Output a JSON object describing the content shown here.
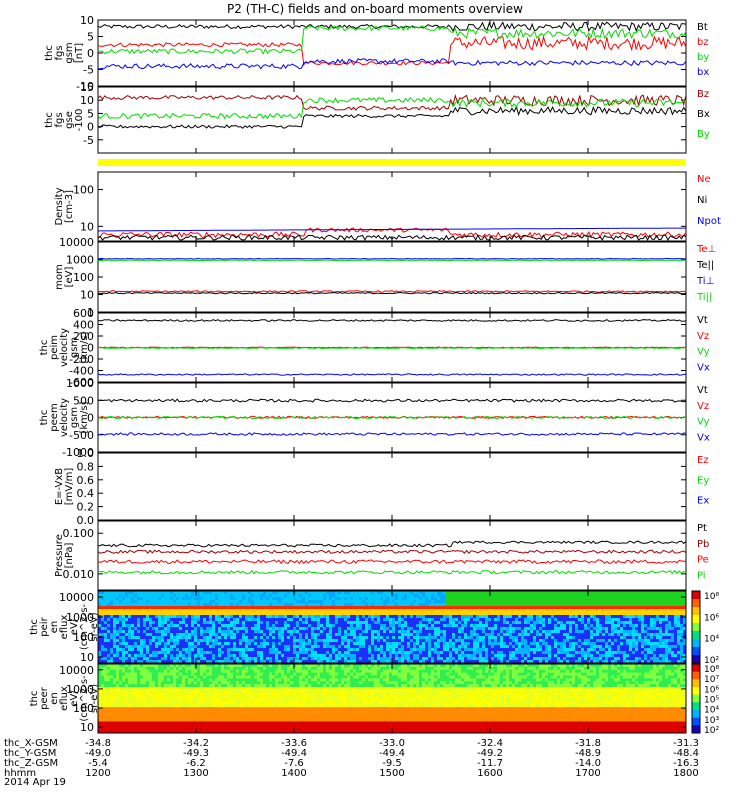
{
  "title": "P2 (TH-C) fields and on-board moments overview",
  "date_label": "2014 Apr 19",
  "chart_data": {
    "type": "line",
    "title": "P2 (TH-C) fields and on-board moments overview",
    "x_axis": {
      "ticks": [
        "1200",
        "1300",
        "1400",
        "1500",
        "1600",
        "1700",
        "1800"
      ],
      "rows": [
        {
          "label": "thc_X-GSM",
          "values": [
            "-34.8",
            "-34.2",
            "-33.6",
            "-33.0",
            "-32.4",
            "-31.8",
            "-31.3"
          ]
        },
        {
          "label": "thc_Y-GSM",
          "values": [
            "-49.0",
            "-49.3",
            "-49.4",
            "-49.4",
            "-49.2",
            "-48.9",
            "-48.4"
          ]
        },
        {
          "label": "thc_Z-GSM",
          "values": [
            "-5.4",
            "-6.2",
            "-7.6",
            "-9.5",
            "-11.7",
            "-14.0",
            "-16.3"
          ]
        },
        {
          "label": "hhmm",
          "values": [
            "1200",
            "1300",
            "1400",
            "1500",
            "1600",
            "1700",
            "1800"
          ]
        }
      ]
    },
    "panels": [
      {
        "id": "fgs_gsm",
        "ylabel": [
          "thc",
          "fgs",
          "gsm",
          "[nT]"
        ],
        "ylim": [
          -10,
          10
        ],
        "log": false,
        "ticks": [
          "10",
          "5",
          "0",
          "-5",
          "-10"
        ],
        "series": [
          {
            "name": "Bt",
            "color": "#000000",
            "profile": "mag_bt"
          },
          {
            "name": "bz",
            "color": "#ff0000",
            "profile": "mag_bz"
          },
          {
            "name": "by",
            "color": "#00dd00",
            "profile": "mag_by"
          },
          {
            "name": "bx",
            "color": "#0000ff",
            "profile": "mag_bx"
          }
        ]
      },
      {
        "id": "fgs_gse",
        "ylabel": [
          "thc",
          "fgs",
          "gse",
          "-100"
        ],
        "ylim": [
          -10,
          15
        ],
        "log": false,
        "ticks": [
          "15",
          "10",
          "5",
          "0",
          "-5"
        ],
        "series": [
          {
            "name": "Bz",
            "color": "#a00000",
            "profile": "gse_bz"
          },
          {
            "name": "Bx",
            "color": "#000000",
            "profile": "gse_bx"
          },
          {
            "name": "By",
            "color": "#00dd00",
            "profile": "gse_by"
          }
        ]
      },
      {
        "id": "density",
        "ylabel": [
          "Density",
          "[cm-3]"
        ],
        "ylim": [
          4,
          300
        ],
        "log": true,
        "ticks": [
          "100",
          "10"
        ],
        "series": [
          {
            "name": "Ne",
            "color": "#ff0000",
            "profile": "ne"
          },
          {
            "name": "Ni",
            "color": "#000000",
            "profile": "ni"
          },
          {
            "name": "Npot",
            "color": "#0000ff",
            "profile": "npot"
          }
        ]
      },
      {
        "id": "temperature",
        "ylabel": [
          "mom",
          "[eV]"
        ],
        "ylim": [
          1,
          10000
        ],
        "log": true,
        "ticks": [
          "10000",
          "1000",
          "100",
          "10",
          "1"
        ],
        "series": [
          {
            "name": "Te⊥",
            "color": "#ff0000",
            "profile": "te_perp"
          },
          {
            "name": "Te||",
            "color": "#000000",
            "profile": "te_par"
          },
          {
            "name": "Ti⊥",
            "color": "#0000ff",
            "profile": "ti_perp"
          },
          {
            "name": "Ti||",
            "color": "#00dd00",
            "profile": "ti_par"
          }
        ]
      },
      {
        "id": "peim_velocity",
        "ylabel": [
          "thc",
          "peim",
          "velocity",
          "gsm",
          "[km/s]"
        ],
        "ylim": [
          -600,
          600
        ],
        "log": false,
        "ticks": [
          "600",
          "400",
          "200",
          "0",
          "-200",
          "-400",
          "-600"
        ],
        "series": [
          {
            "name": "Vt",
            "color": "#000000",
            "profile": "vt_i"
          },
          {
            "name": "Vz",
            "color": "#ff0000",
            "profile": "vz_i"
          },
          {
            "name": "Vy",
            "color": "#00dd00",
            "profile": "vy_i"
          },
          {
            "name": "Vx",
            "color": "#0000ff",
            "profile": "vx_i"
          }
        ]
      },
      {
        "id": "peem_velocity",
        "ylabel": [
          "thc",
          "peem",
          "velocity",
          "gsm",
          "[km/s]"
        ],
        "ylim": [
          -1000,
          1000
        ],
        "log": false,
        "ticks": [
          "1000",
          "500",
          "0",
          "-500",
          "-1000"
        ],
        "series": [
          {
            "name": "Vt",
            "color": "#000000",
            "profile": "vt_e"
          },
          {
            "name": "Vz",
            "color": "#ff0000",
            "profile": "vz_e"
          },
          {
            "name": "Vy",
            "color": "#00dd00",
            "profile": "vy_e"
          },
          {
            "name": "Vx",
            "color": "#0000ff",
            "profile": "vx_e"
          }
        ]
      },
      {
        "id": "efield",
        "ylabel": [
          "E=-VxB",
          "[mV/m]"
        ],
        "ylim": [
          0,
          1
        ],
        "log": false,
        "ticks": [
          "1.0",
          "0.8",
          "0.6",
          "0.4",
          "0.2",
          "0.0"
        ],
        "series": [
          {
            "name": "Ez",
            "color": "#ff0000",
            "profile": "none"
          },
          {
            "name": "Ey",
            "color": "#00dd00",
            "profile": "none"
          },
          {
            "name": "Ex",
            "color": "#0000ff",
            "profile": "none"
          }
        ]
      },
      {
        "id": "pressure",
        "ylabel": [
          "Pressure",
          "[nPa]"
        ],
        "ylim": [
          0.004,
          0.2
        ],
        "log": true,
        "ticks": [
          "0.100",
          "0.010"
        ],
        "series": [
          {
            "name": "Pt",
            "color": "#000000",
            "profile": "pt"
          },
          {
            "name": "Pb",
            "color": "#a00000",
            "profile": "pb"
          },
          {
            "name": "Pe",
            "color": "#ff0000",
            "profile": "pe"
          },
          {
            "name": "Pi",
            "color": "#00dd00",
            "profile": "pi"
          }
        ]
      },
      {
        "id": "peir_spec",
        "ylabel": [
          "thc",
          "peir",
          "en",
          "eflux",
          "eV/",
          "(cm^2-s-",
          "sr-eV)"
        ],
        "ylim": [
          5,
          20000
        ],
        "log": true,
        "ticks": [
          "10000",
          "1000",
          "100",
          "10"
        ],
        "spectrogram": "ion"
      },
      {
        "id": "peer_spec",
        "ylabel": [
          "thc",
          "peer",
          "en",
          "eflux",
          "eV/",
          "(cm^2-s-",
          "sr-eV)"
        ],
        "ylim": [
          5,
          20000
        ],
        "log": true,
        "ticks": [
          "10000",
          "1000",
          "100",
          "10"
        ],
        "spectrogram": "electron"
      }
    ],
    "colorbars": [
      {
        "id": "ion",
        "labels": [
          "10⁸",
          "10⁶",
          "10⁴",
          "10²"
        ]
      },
      {
        "id": "electron",
        "labels": [
          "10⁸",
          "10⁷",
          "10⁶",
          "10⁵",
          "10⁴",
          "10³",
          "10²"
        ]
      }
    ]
  }
}
